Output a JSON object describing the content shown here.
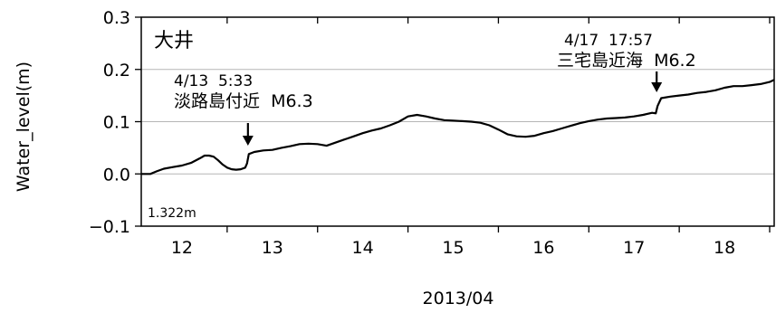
{
  "chart_data": {
    "type": "line",
    "station": "大井",
    "ylabel": "Water_level(m)",
    "xlabel": "2013/04",
    "ylim": [
      -0.1,
      0.3
    ],
    "xlim": [
      11.55,
      18.55
    ],
    "y_ticks": [
      "0.3",
      "0.2",
      "0.1",
      "0.0",
      "−0.1"
    ],
    "y_tick_values": [
      0.3,
      0.2,
      0.1,
      0.0,
      -0.1
    ],
    "x_ticks": [
      "12",
      "13",
      "14",
      "15",
      "16",
      "17",
      "18"
    ],
    "x_tick_values": [
      12,
      13,
      14,
      15,
      16,
      17,
      18
    ],
    "grid": "horizontal",
    "baseline_note": "1.322m",
    "annotations": [
      {
        "line1": "4/13  5:33",
        "line2": "淡路島付近  M6.3",
        "x": 12.73,
        "y_arrow_end": 0.05
      },
      {
        "line1": "4/17  17:57",
        "line2": "三宅島近海  M6.2",
        "x": 17.25,
        "y_arrow_end": 0.145
      }
    ],
    "series": [
      {
        "x": [
          11.55,
          11.65,
          11.72,
          11.8,
          11.9,
          12.0,
          12.1,
          12.2,
          12.25,
          12.3,
          12.35,
          12.4,
          12.45,
          12.5,
          12.55,
          12.6,
          12.65,
          12.7,
          12.72,
          12.74,
          12.8,
          12.9,
          13.0,
          13.1,
          13.2,
          13.3,
          13.4,
          13.5,
          13.6,
          13.7,
          13.8,
          13.9,
          14.0,
          14.1,
          14.2,
          14.3,
          14.4,
          14.5,
          14.6,
          14.7,
          14.8,
          14.9,
          15.0,
          15.1,
          15.2,
          15.3,
          15.4,
          15.5,
          15.6,
          15.7,
          15.8,
          15.9,
          16.0,
          16.1,
          16.2,
          16.3,
          16.4,
          16.5,
          16.6,
          16.7,
          16.8,
          16.9,
          17.0,
          17.1,
          17.2,
          17.24,
          17.26,
          17.3,
          17.4,
          17.5,
          17.6,
          17.7,
          17.8,
          17.9,
          18.0,
          18.1,
          18.2,
          18.3,
          18.4,
          18.5,
          18.55
        ],
        "values": [
          0.0,
          0.0,
          0.005,
          0.01,
          0.013,
          0.016,
          0.021,
          0.03,
          0.035,
          0.035,
          0.033,
          0.026,
          0.018,
          0.012,
          0.009,
          0.008,
          0.009,
          0.012,
          0.02,
          0.038,
          0.042,
          0.045,
          0.046,
          0.05,
          0.053,
          0.057,
          0.058,
          0.057,
          0.054,
          0.06,
          0.066,
          0.072,
          0.078,
          0.083,
          0.087,
          0.093,
          0.1,
          0.11,
          0.113,
          0.11,
          0.106,
          0.103,
          0.102,
          0.101,
          0.1,
          0.098,
          0.093,
          0.085,
          0.076,
          0.072,
          0.071,
          0.073,
          0.078,
          0.082,
          0.087,
          0.092,
          0.097,
          0.101,
          0.104,
          0.106,
          0.107,
          0.108,
          0.11,
          0.113,
          0.117,
          0.116,
          0.13,
          0.145,
          0.148,
          0.15,
          0.152,
          0.155,
          0.157,
          0.16,
          0.165,
          0.168,
          0.168,
          0.17,
          0.172,
          0.176,
          0.18
        ]
      }
    ]
  }
}
